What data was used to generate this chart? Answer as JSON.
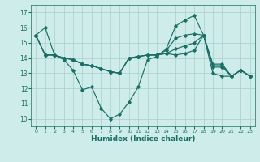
{
  "xlabel": "Humidex (Indice chaleur)",
  "bg_color": "#ceecea",
  "grid_color": "#aacfcc",
  "line_color": "#1a6e66",
  "xlim": [
    -0.5,
    23.5
  ],
  "ylim": [
    9.5,
    17.5
  ],
  "yticks": [
    10,
    11,
    12,
    13,
    14,
    15,
    16,
    17
  ],
  "xticks": [
    0,
    1,
    2,
    3,
    4,
    5,
    6,
    7,
    8,
    9,
    10,
    11,
    12,
    13,
    14,
    15,
    16,
    17,
    18,
    19,
    20,
    21,
    22,
    23
  ],
  "s1": [
    15.5,
    16.0,
    14.2,
    13.9,
    13.2,
    11.9,
    12.1,
    10.7,
    10.0,
    10.3,
    11.1,
    12.1,
    13.9,
    14.1,
    14.6,
    16.1,
    16.5,
    16.8,
    15.5,
    13.0,
    12.8,
    12.8,
    13.2,
    12.8
  ],
  "s2": [
    15.5,
    14.2,
    14.2,
    14.0,
    13.9,
    13.6,
    13.5,
    13.3,
    13.1,
    13.0,
    14.0,
    14.1,
    14.2,
    14.2,
    14.5,
    15.3,
    15.5,
    15.6,
    15.5,
    13.6,
    13.6,
    12.8,
    13.2,
    12.8
  ],
  "s3": [
    15.5,
    14.2,
    14.2,
    14.0,
    13.9,
    13.6,
    13.5,
    13.3,
    13.1,
    13.0,
    14.0,
    14.1,
    14.2,
    14.2,
    14.3,
    14.6,
    14.8,
    15.0,
    15.5,
    13.5,
    13.5,
    12.8,
    13.2,
    12.8
  ],
  "s4": [
    15.5,
    14.2,
    14.2,
    14.0,
    13.9,
    13.6,
    13.5,
    13.3,
    13.1,
    13.0,
    14.0,
    14.1,
    14.2,
    14.2,
    14.3,
    14.2,
    14.3,
    14.5,
    15.5,
    13.4,
    13.4,
    12.8,
    13.2,
    12.8
  ]
}
